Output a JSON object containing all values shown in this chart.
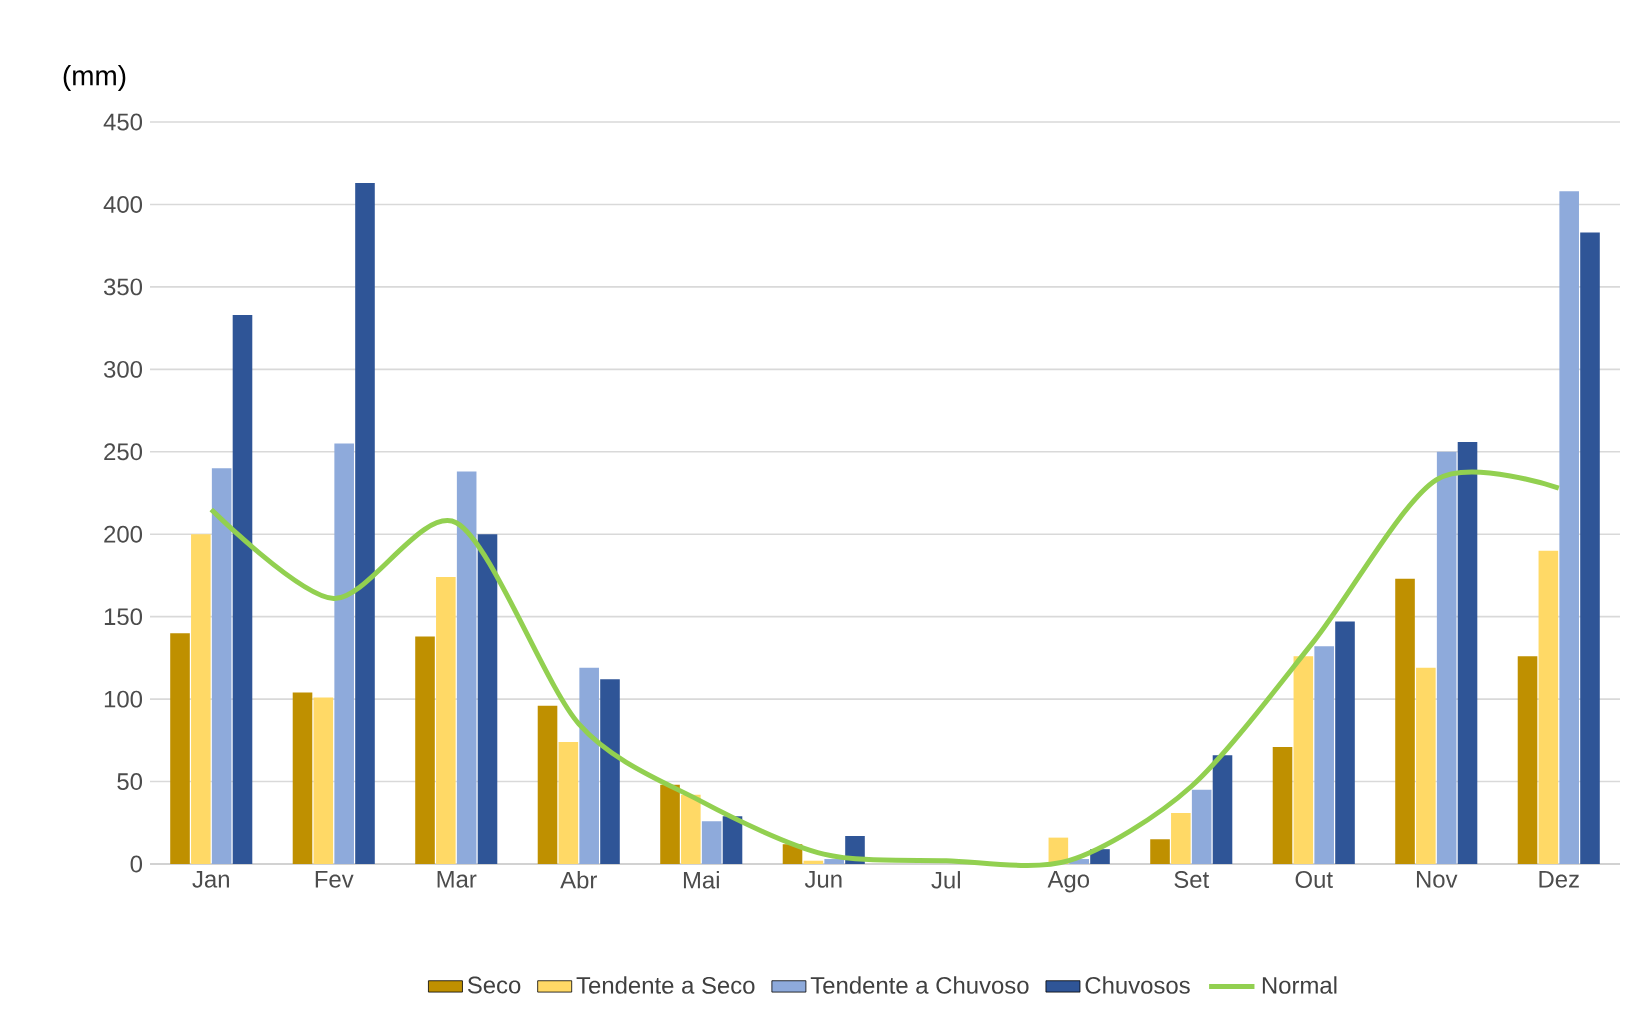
{
  "chart_data": {
    "type": "bar",
    "ylabel": "(mm)",
    "categories": [
      "Jan",
      "Fev",
      "Mar",
      "Abr",
      "Mai",
      "Jun",
      "Jul",
      "Ago",
      "Set",
      "Out",
      "Nov",
      "Dez"
    ],
    "series": [
      {
        "name": "Seco",
        "color": "#bf9000",
        "values": [
          140,
          104,
          138,
          96,
          48,
          12,
          0,
          0,
          15,
          71,
          173,
          126
        ]
      },
      {
        "name": "Tendente a Seco",
        "color": "#ffd966",
        "values": [
          200,
          101,
          174,
          74,
          42,
          2,
          0,
          16,
          31,
          126,
          119,
          190
        ]
      },
      {
        "name": "Tendente a Chuvoso",
        "color": "#8eaadb",
        "values": [
          240,
          255,
          238,
          119,
          26,
          3,
          0,
          3,
          45,
          132,
          250,
          408
        ]
      },
      {
        "name": "Chuvosos",
        "color": "#2f5597",
        "values": [
          333,
          413,
          200,
          112,
          29,
          17,
          0,
          9,
          66,
          147,
          256,
          383
        ]
      },
      {
        "name": "Normal",
        "type": "line",
        "color": "#92d050",
        "values": [
          215,
          161,
          207,
          85,
          38,
          6,
          2,
          2,
          47,
          135,
          233,
          228
        ]
      }
    ],
    "ylim": [
      0,
      450
    ],
    "yticks": [
      0,
      50,
      100,
      150,
      200,
      250,
      300,
      350,
      400,
      450
    ],
    "grid": "y",
    "legend": "bottom"
  }
}
